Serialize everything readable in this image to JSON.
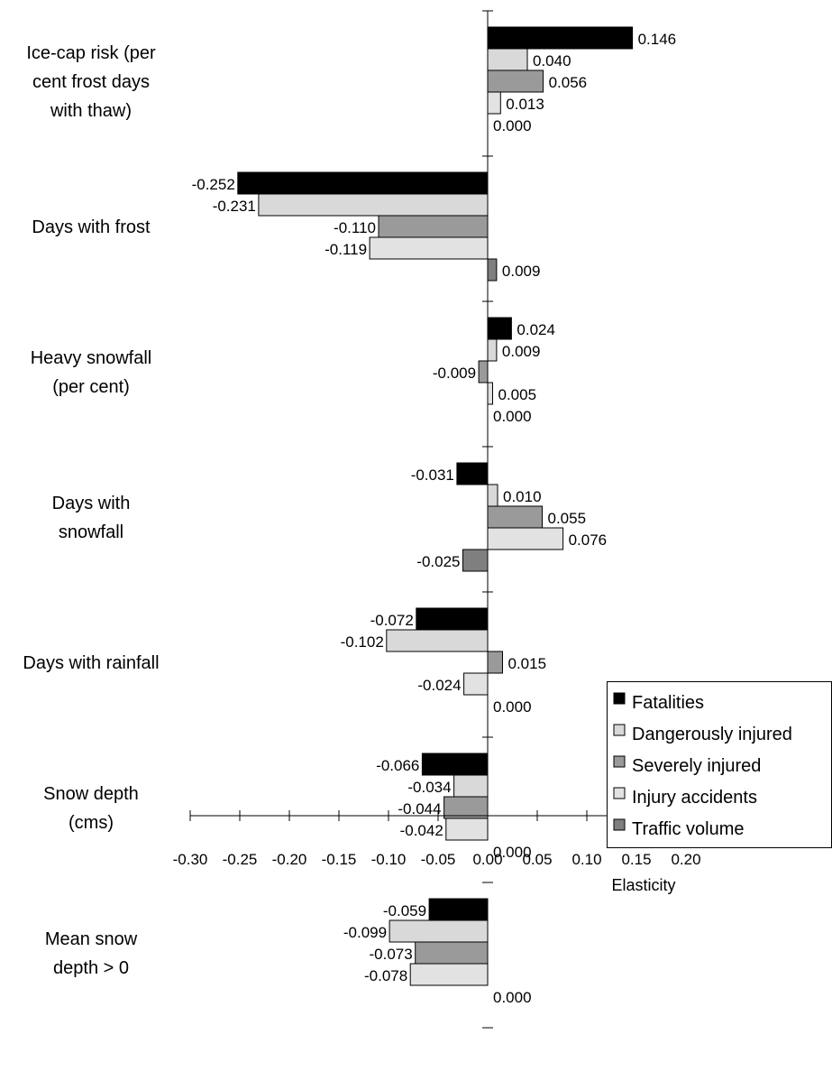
{
  "chart_data": {
    "type": "bar",
    "orientation": "horizontal",
    "xlabel": "Elasticity",
    "ylabel": "",
    "xlim": [
      -0.3,
      0.2
    ],
    "x_ticks": [
      -0.3,
      -0.25,
      -0.2,
      -0.15,
      -0.1,
      -0.05,
      0.0,
      0.05,
      0.1,
      0.15,
      0.2
    ],
    "x_tick_labels": [
      "-0.30",
      "-0.25",
      "-0.20",
      "-0.15",
      "-0.10",
      "-0.05",
      "0.00",
      "0.05",
      "0.10",
      "0.15",
      "0.20"
    ],
    "grid": false,
    "legend_position": "right",
    "categories": [
      [
        "Ice-cap risk (per",
        "cent frost days",
        "with thaw)"
      ],
      [
        "Days with frost"
      ],
      [
        "Heavy snowfall",
        "(per cent)"
      ],
      [
        "Days with",
        "snowfall"
      ],
      [
        "Days with rainfall"
      ],
      [
        "Snow depth",
        "(cms)"
      ],
      [
        "Mean snow",
        "depth > 0"
      ]
    ],
    "series": [
      {
        "name": "Fatalities",
        "color": "#000000",
        "values": [
          0.146,
          -0.252,
          0.024,
          -0.031,
          -0.072,
          -0.066,
          -0.059
        ],
        "labels": [
          "0.146",
          "-0.252",
          "0.024",
          "-0.031",
          "-0.072",
          "-0.066",
          "-0.059"
        ]
      },
      {
        "name": "Dangerously injured",
        "color": "#d9d9d9",
        "values": [
          0.04,
          -0.231,
          0.009,
          0.01,
          -0.102,
          -0.034,
          -0.099
        ],
        "labels": [
          "0.040",
          "-0.231",
          "0.009",
          "0.010",
          "-0.102",
          "-0.034",
          "-0.099"
        ]
      },
      {
        "name": "Severely injured",
        "color": "#9a9a9a",
        "values": [
          0.056,
          -0.11,
          -0.009,
          0.055,
          0.015,
          -0.044,
          -0.073
        ],
        "labels": [
          "0.056",
          "-0.110",
          "-0.009",
          "0.055",
          "0.015",
          "-0.044",
          "-0.073"
        ]
      },
      {
        "name": "Injury accidents",
        "color": "#e2e2e2",
        "values": [
          0.013,
          -0.119,
          0.005,
          0.076,
          -0.024,
          -0.042,
          -0.078
        ],
        "labels": [
          "0.013",
          "-0.119",
          "0.005",
          "0.076",
          "-0.024",
          "-0.042",
          "-0.078"
        ]
      },
      {
        "name": "Traffic volume",
        "color": "#7f7f7f",
        "values": [
          0.0,
          0.009,
          0.0,
          -0.025,
          0.0,
          0.0,
          0.0
        ],
        "labels": [
          "0.000",
          "0.009",
          "0.000",
          "-0.025",
          "0.000",
          "0.000",
          "0.000"
        ]
      }
    ]
  }
}
